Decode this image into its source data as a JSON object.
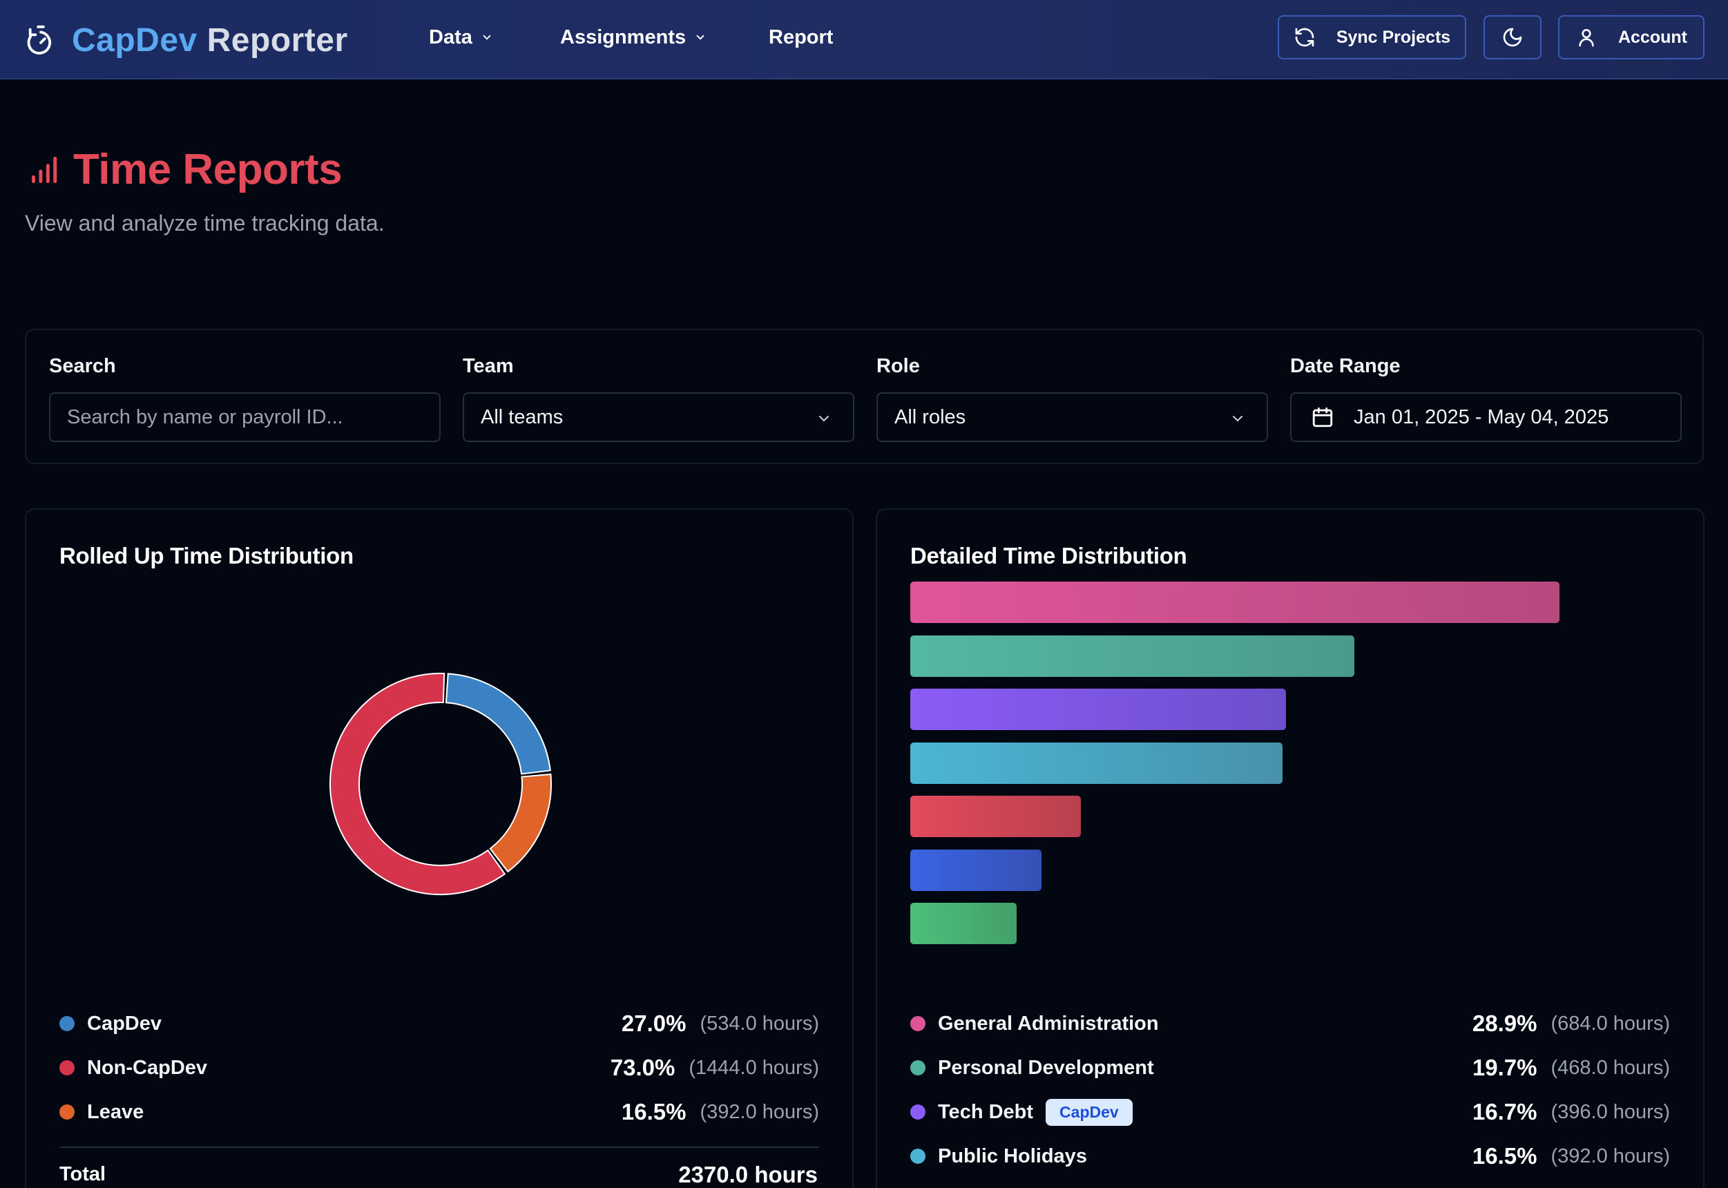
{
  "header": {
    "brand_part1": "CapDev",
    "brand_part2": "Reporter",
    "nav": [
      {
        "label": "Data"
      },
      {
        "label": "Assignments"
      },
      {
        "label": "Report"
      }
    ],
    "sync_label": "Sync Projects",
    "account_label": "Account"
  },
  "page": {
    "title": "Time Reports",
    "subtitle": "View and analyze time tracking data."
  },
  "filters": {
    "search_label": "Search",
    "search_placeholder": "Search by name or payroll ID...",
    "team_label": "Team",
    "team_value": "All teams",
    "role_label": "Role",
    "role_value": "All roles",
    "date_label": "Date Range",
    "date_value": "Jan 01, 2025 - May 04, 2025"
  },
  "rolled_up": {
    "title": "Rolled Up Time Distribution",
    "total_label": "Total",
    "total_value": "2370.0 hours",
    "items": [
      {
        "name": "CapDev",
        "pct": "27.0%",
        "hours": "(534.0 hours)",
        "color": "#3b82c4"
      },
      {
        "name": "Non-CapDev",
        "pct": "73.0%",
        "hours": "(1444.0 hours)",
        "color": "#d6334d"
      },
      {
        "name": "Leave",
        "pct": "16.5%",
        "hours": "(392.0 hours)",
        "color": "#e0632a"
      }
    ]
  },
  "detailed": {
    "title": "Detailed Time Distribution",
    "items": [
      {
        "name": "General Administration",
        "pct": "28.9%",
        "hours": "(684.0 hours)",
        "color": "#e0559a",
        "badge": ""
      },
      {
        "name": "Personal Development",
        "pct": "19.7%",
        "hours": "(468.0 hours)",
        "color": "#4fb3a0",
        "badge": ""
      },
      {
        "name": "Tech Debt",
        "pct": "16.7%",
        "hours": "(396.0 hours)",
        "color": "#8b5cf6",
        "badge": "CapDev"
      },
      {
        "name": "Public Holidays",
        "pct": "16.5%",
        "hours": "(392.0 hours)",
        "color": "#4bb3d4",
        "badge": ""
      }
    ],
    "chart_bars": [
      {
        "value": 684,
        "color1": "#e0559a",
        "color2": "#b54a7f"
      },
      {
        "value": 468,
        "color1": "#54b8a2",
        "color2": "#4a9a8a"
      },
      {
        "value": 396,
        "color1": "#8b5cf6",
        "color2": "#6d4fcb"
      },
      {
        "value": 392,
        "color1": "#4bb6d4",
        "color2": "#4792aa"
      },
      {
        "value": 180,
        "color1": "#e44a5c",
        "color2": "#b8414f"
      },
      {
        "value": 138,
        "color1": "#3b64e4",
        "color2": "#3451b5"
      },
      {
        "value": 112,
        "color1": "#4dbf7c",
        "color2": "#43a06a"
      }
    ]
  }
}
